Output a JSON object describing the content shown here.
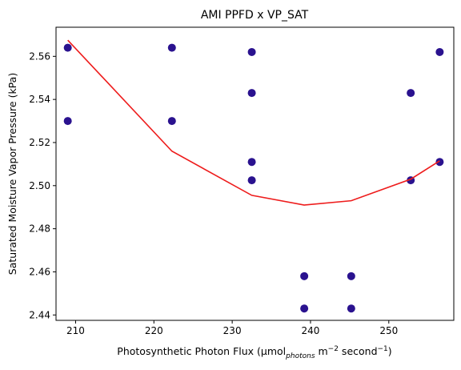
{
  "chart_data": {
    "type": "scatter",
    "title": "AMI PPFD x VP_SAT",
    "xlabel_main": "Photosynthetic Photon Flux (µmol",
    "xlabel_sub": "photons",
    "xlabel_unit1": " m",
    "xlabel_sup1": "−2",
    "xlabel_unit2": " second",
    "xlabel_sup2": "−1",
    "xlabel_close": ")",
    "ylabel": "Saturated Moisture Vapor Pressure (kPa)",
    "xlim": [
      207.5,
      258.3
    ],
    "ylim": [
      2.4375,
      2.5735
    ],
    "xticks": [
      210,
      220,
      230,
      240,
      250
    ],
    "xtick_labels": [
      "210",
      "220",
      "230",
      "240",
      "250"
    ],
    "yticks": [
      2.44,
      2.46,
      2.48,
      2.5,
      2.52,
      2.54,
      2.56
    ],
    "ytick_labels": [
      "2.44",
      "2.46",
      "2.48",
      "2.50",
      "2.52",
      "2.54",
      "2.56"
    ],
    "grid": false,
    "series": [
      {
        "type": "scatter",
        "color": "#2a128f",
        "x": [
          209.0,
          209.0,
          222.3,
          222.3,
          232.5,
          232.5,
          232.5,
          232.5,
          239.2,
          239.2,
          245.2,
          245.2,
          252.8,
          252.8,
          256.5,
          256.5
        ],
        "y": [
          2.564,
          2.53,
          2.564,
          2.53,
          2.562,
          2.543,
          2.511,
          2.5025,
          2.458,
          2.443,
          2.458,
          2.443,
          2.543,
          2.5025,
          2.562,
          2.511
        ]
      },
      {
        "type": "line",
        "color": "#ee1c1c",
        "x": [
          209.0,
          222.3,
          232.5,
          239.2,
          245.2,
          252.8,
          256.5
        ],
        "y": [
          2.5675,
          2.516,
          2.4955,
          2.491,
          2.493,
          2.503,
          2.5115
        ]
      }
    ]
  }
}
